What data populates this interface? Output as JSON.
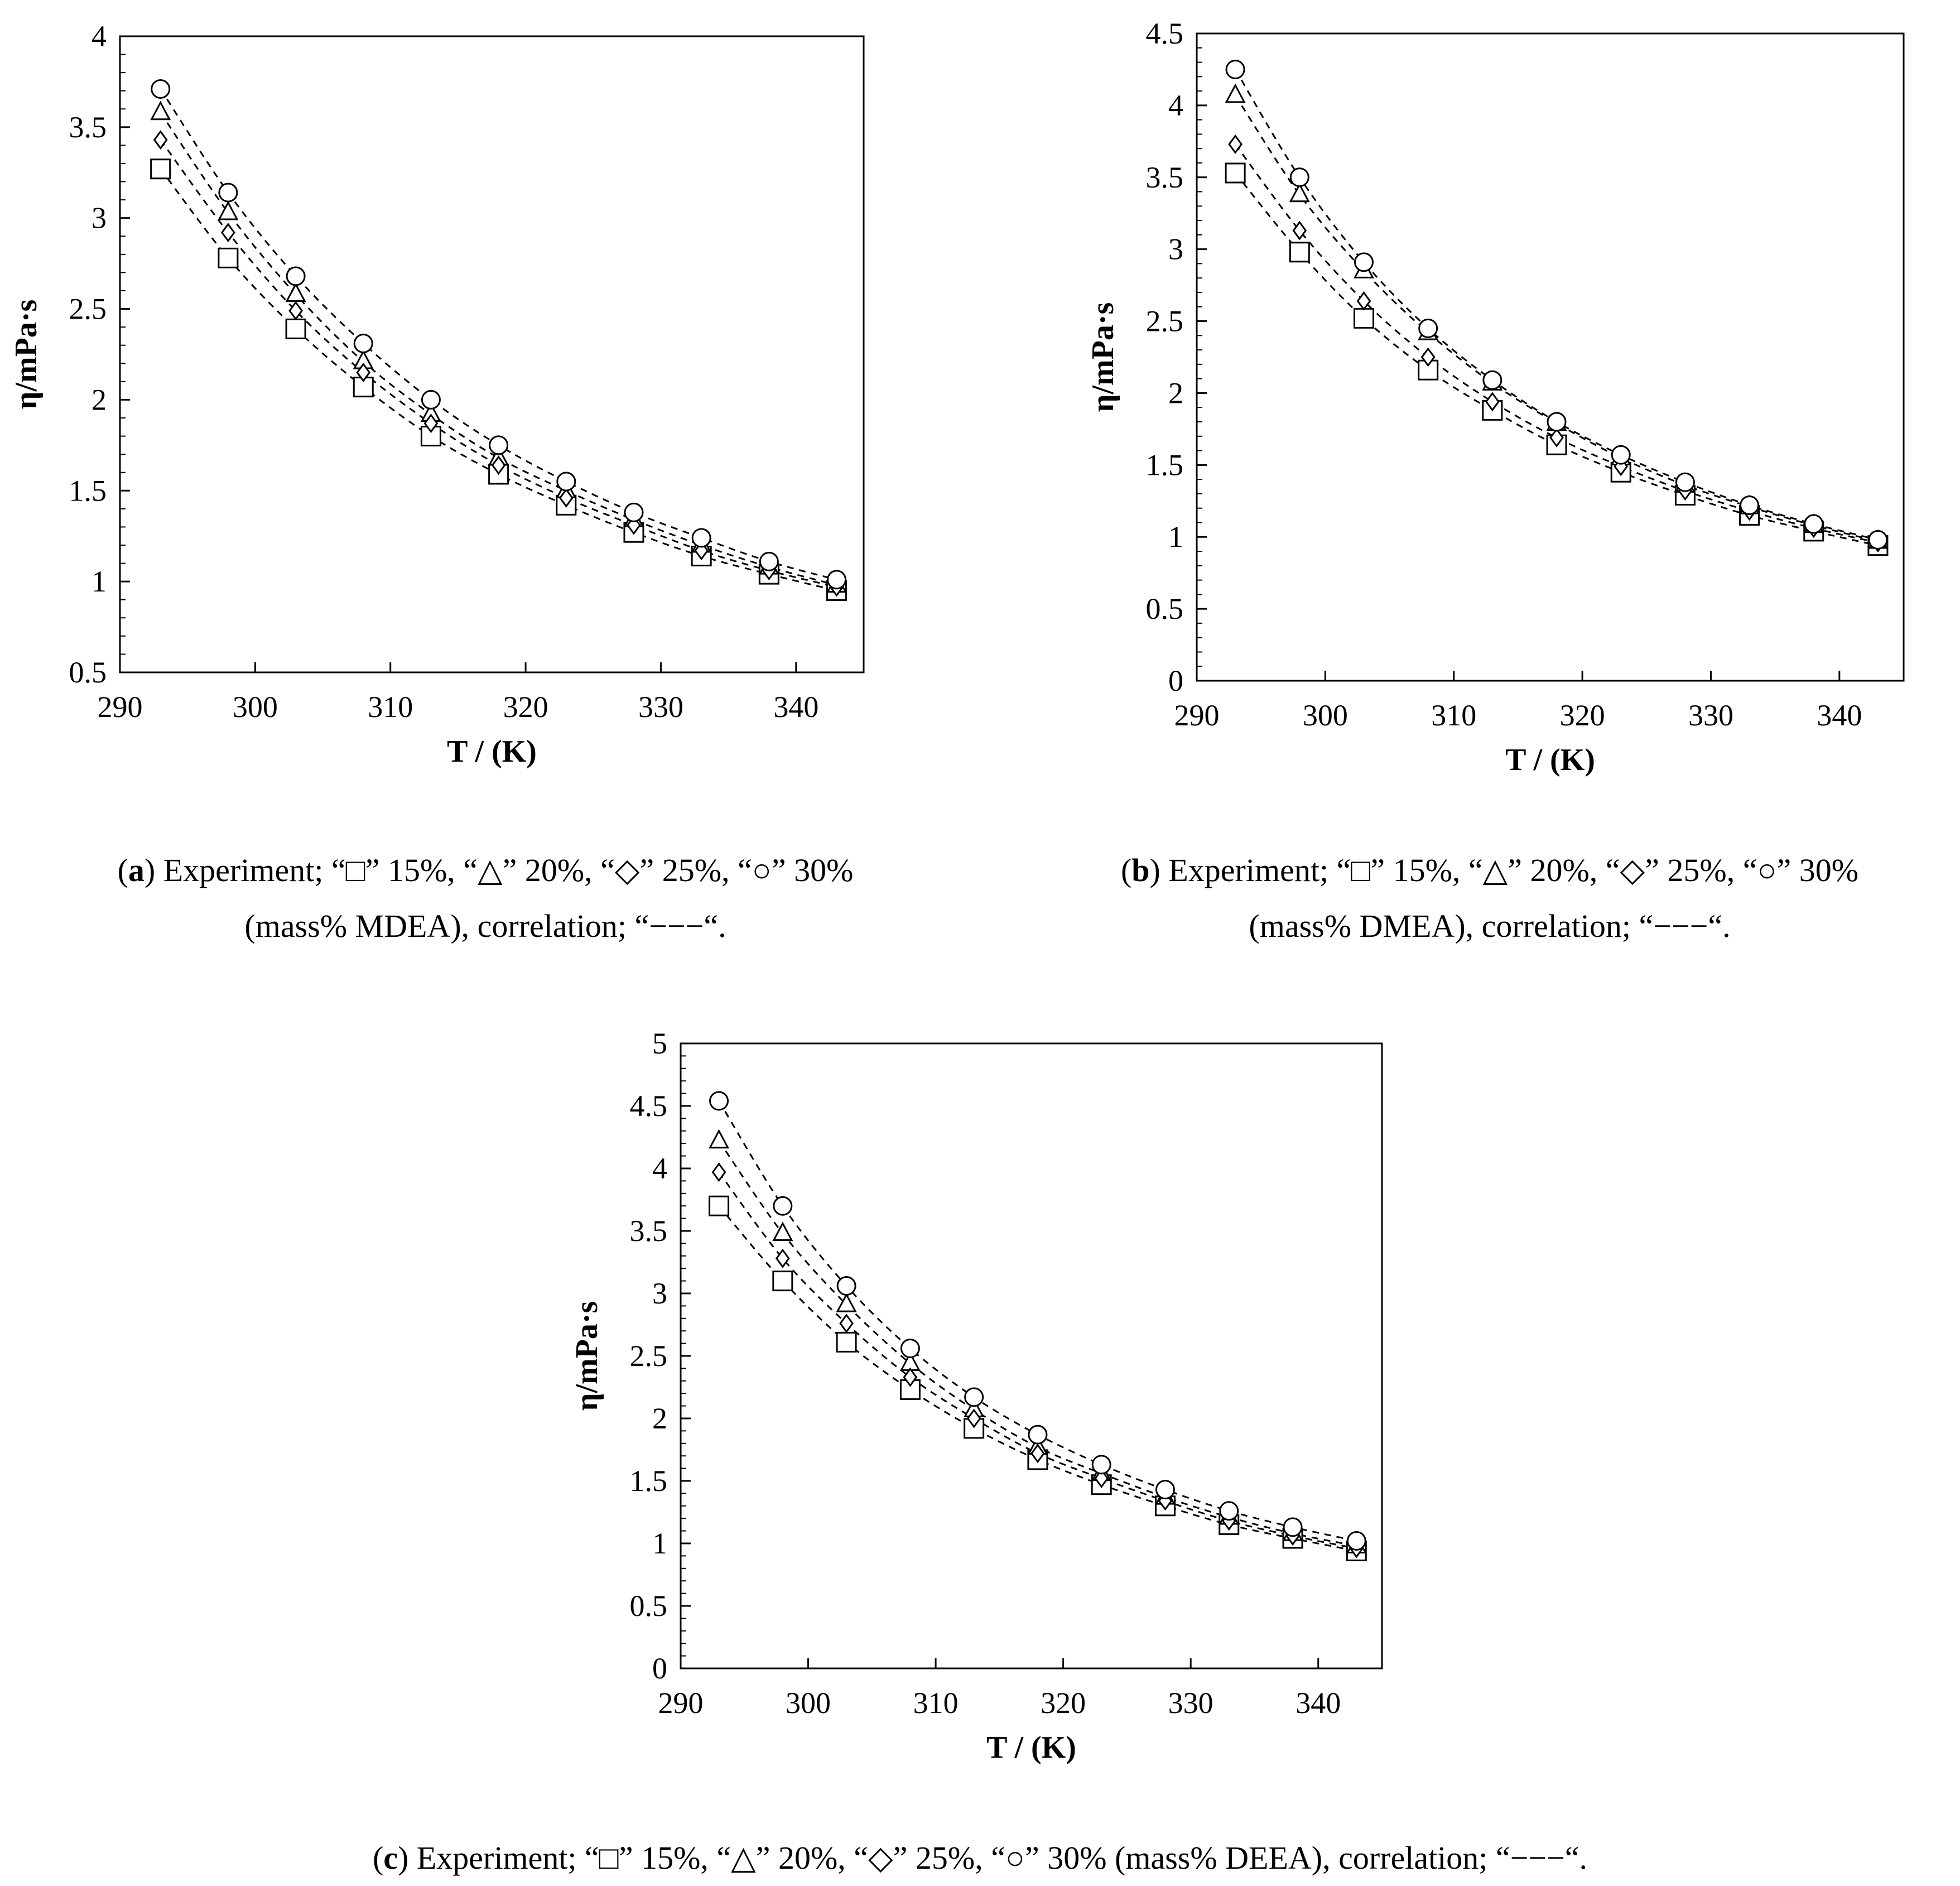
{
  "chart_data": [
    {
      "type": "scatter",
      "panel": "a",
      "xlabel": "T / (K)",
      "ylabel": "η/mPa·s",
      "xlim": [
        290,
        345
      ],
      "ylim": [
        0.5,
        4
      ],
      "xticks": [
        290,
        300,
        310,
        320,
        330,
        340
      ],
      "xtick_labels": [
        "290",
        "300",
        "310",
        "320",
        "330",
        "340"
      ],
      "yticks": [
        0.5,
        1,
        1.5,
        2,
        2.5,
        3,
        3.5,
        4
      ],
      "ytick_labels": [
        "0.5",
        "1",
        "1.5",
        "2",
        "2.5",
        "3",
        "3.5",
        "4"
      ],
      "x": [
        293,
        298,
        303,
        308,
        313,
        318,
        323,
        328,
        333,
        338,
        343
      ],
      "series": [
        {
          "name": "15%",
          "marker": "square",
          "values": [
            3.27,
            2.78,
            2.39,
            2.07,
            1.8,
            1.59,
            1.42,
            1.27,
            1.14,
            1.04,
            0.95
          ]
        },
        {
          "name": "20%",
          "marker": "triangle",
          "values": [
            3.58,
            3.03,
            2.58,
            2.21,
            1.92,
            1.68,
            1.5,
            1.34,
            1.2,
            1.08,
            0.98
          ]
        },
        {
          "name": "25%",
          "marker": "diamond",
          "values": [
            3.43,
            2.92,
            2.49,
            2.15,
            1.87,
            1.64,
            1.46,
            1.31,
            1.17,
            1.06,
            0.97
          ]
        },
        {
          "name": "30%",
          "marker": "circle",
          "values": [
            3.71,
            3.14,
            2.68,
            2.31,
            2.0,
            1.75,
            1.55,
            1.38,
            1.24,
            1.11,
            1.01
          ]
        }
      ]
    },
    {
      "type": "scatter",
      "panel": "b",
      "xlabel": "T / (K)",
      "ylabel": "η/mPa·s",
      "xlim": [
        290,
        345
      ],
      "ylim": [
        0,
        4.5
      ],
      "xticks": [
        290,
        300,
        310,
        320,
        330,
        340
      ],
      "xtick_labels": [
        "290",
        "300",
        "310",
        "320",
        "330",
        "340"
      ],
      "yticks": [
        0,
        0.5,
        1,
        1.5,
        2,
        2.5,
        3,
        3.5,
        4,
        4.5
      ],
      "ytick_labels": [
        "0",
        "0.5",
        "1",
        "1.5",
        "2",
        "2.5",
        "3",
        "3.5",
        "4",
        "4.5"
      ],
      "x": [
        293,
        298,
        303,
        308,
        313,
        318,
        323,
        328,
        333,
        338,
        343
      ],
      "series": [
        {
          "name": "15%",
          "marker": "square",
          "values": [
            3.53,
            2.98,
            2.52,
            2.16,
            1.88,
            1.64,
            1.45,
            1.29,
            1.15,
            1.04,
            0.94
          ]
        },
        {
          "name": "20%",
          "marker": "triangle",
          "values": [
            4.07,
            3.38,
            2.85,
            2.42,
            2.07,
            1.79,
            1.55,
            1.36,
            1.21,
            1.08,
            0.97
          ]
        },
        {
          "name": "25%",
          "marker": "diamond",
          "values": [
            3.73,
            3.13,
            2.64,
            2.25,
            1.94,
            1.69,
            1.49,
            1.32,
            1.18,
            1.06,
            0.96
          ]
        },
        {
          "name": "30%",
          "marker": "circle",
          "values": [
            4.25,
            3.5,
            2.91,
            2.45,
            2.09,
            1.8,
            1.57,
            1.38,
            1.22,
            1.09,
            0.98
          ]
        }
      ]
    },
    {
      "type": "scatter",
      "panel": "c",
      "xlabel": "T / (K)",
      "ylabel": "η/mPa·s",
      "xlim": [
        290,
        345
      ],
      "ylim": [
        0,
        5
      ],
      "xticks": [
        290,
        300,
        310,
        320,
        330,
        340
      ],
      "xtick_labels": [
        "290",
        "300",
        "310",
        "320",
        "330",
        "340"
      ],
      "yticks": [
        0,
        0.5,
        1,
        1.5,
        2,
        2.5,
        3,
        3.5,
        4,
        4.5,
        5
      ],
      "ytick_labels": [
        "0",
        "0.5",
        "1",
        "1.5",
        "2",
        "2.5",
        "3",
        "3.5",
        "4",
        "4.5",
        "5"
      ],
      "x": [
        293,
        298,
        303,
        308,
        313,
        318,
        323,
        328,
        333,
        338,
        343
      ],
      "series": [
        {
          "name": "15%",
          "marker": "square",
          "values": [
            3.7,
            3.1,
            2.61,
            2.23,
            1.92,
            1.67,
            1.47,
            1.3,
            1.15,
            1.04,
            0.94
          ]
        },
        {
          "name": "20%",
          "marker": "triangle",
          "values": [
            4.22,
            3.48,
            2.91,
            2.44,
            2.07,
            1.77,
            1.56,
            1.37,
            1.21,
            1.08,
            0.98
          ]
        },
        {
          "name": "25%",
          "marker": "diamond",
          "values": [
            3.97,
            3.28,
            2.76,
            2.33,
            2.0,
            1.72,
            1.52,
            1.34,
            1.18,
            1.06,
            0.96
          ]
        },
        {
          "name": "30%",
          "marker": "circle",
          "values": [
            4.54,
            3.7,
            3.06,
            2.56,
            2.17,
            1.87,
            1.63,
            1.43,
            1.26,
            1.13,
            1.02
          ]
        }
      ]
    }
  ],
  "captions": {
    "a": {
      "letter": "a",
      "line1": " Experiment; “□” 15%, “△” 20%, “◇” 25%, “○” 30%",
      "line2": "(mass% MDEA), correlation; “−−−“."
    },
    "b": {
      "letter": "b",
      "line1": " Experiment; “□” 15%, “△” 20%, “◇” 25%, “○” 30%",
      "line2": "(mass% DMEA), correlation; “−−−“."
    },
    "c": {
      "letter": "c",
      "line1": " Experiment; “□” 15%, “△” 20%, “◇” 25%, “○” 30% (mass% DEEA), correlation; “−−−“."
    }
  }
}
